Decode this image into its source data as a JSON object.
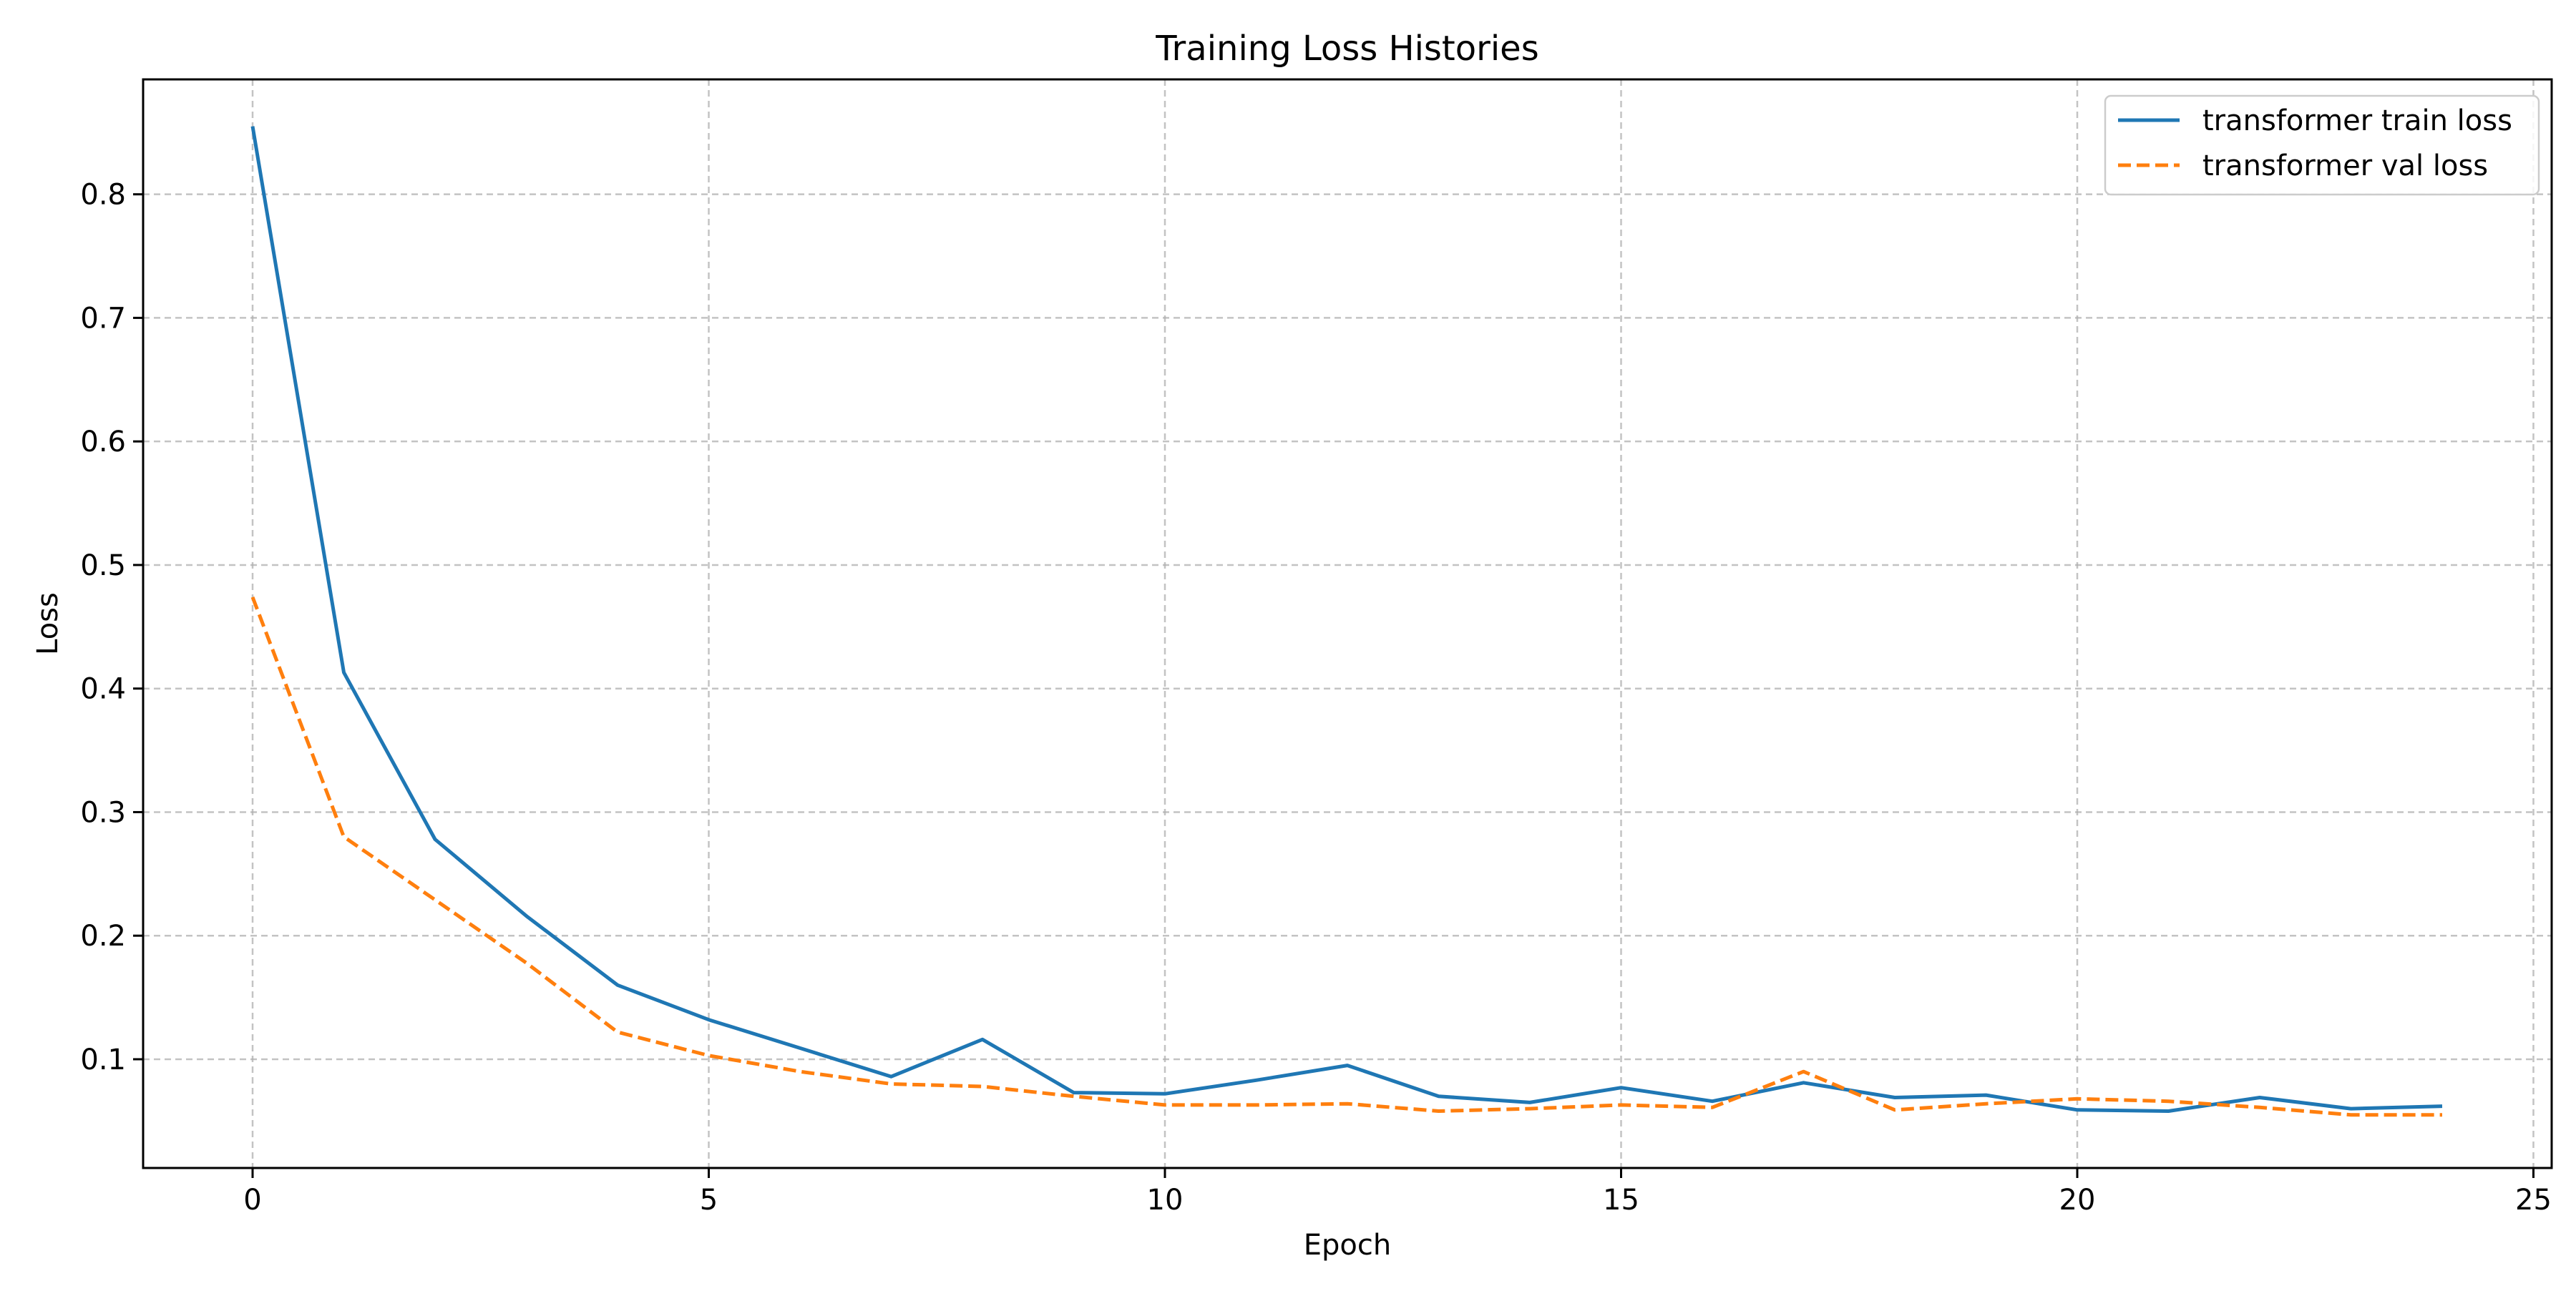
{
  "chart_data": {
    "type": "line",
    "title": "Training Loss Histories",
    "xlabel": "Epoch",
    "ylabel": "Loss",
    "xlim": [
      -1.2,
      25.2
    ],
    "ylim": [
      0.012,
      0.893
    ],
    "x_ticks": [
      0,
      5,
      10,
      15,
      20,
      25
    ],
    "y_ticks": [
      0.1,
      0.2,
      0.3,
      0.4,
      0.5,
      0.6,
      0.7,
      0.8
    ],
    "x_tick_labels": [
      "0",
      "5",
      "10",
      "15",
      "20",
      "25"
    ],
    "y_tick_labels": [
      "0.1",
      "0.2",
      "0.3",
      "0.4",
      "0.5",
      "0.6",
      "0.7",
      "0.8"
    ],
    "grid": true,
    "legend_position": "top-right",
    "x": [
      0,
      1,
      2,
      3,
      4,
      5,
      6,
      7,
      8,
      9,
      10,
      11,
      12,
      13,
      14,
      15,
      16,
      17,
      18,
      19,
      20,
      21,
      22,
      23,
      24
    ],
    "series": [
      {
        "name": "transformer train loss",
        "color": "#1f77b4",
        "style": "solid",
        "values": [
          0.855,
          0.413,
          0.278,
          0.216,
          0.16,
          0.132,
          0.109,
          0.086,
          0.116,
          0.073,
          0.072,
          0.083,
          0.095,
          0.07,
          0.065,
          0.077,
          0.066,
          0.081,
          0.069,
          0.071,
          0.059,
          0.058,
          0.069,
          0.06,
          0.062
        ]
      },
      {
        "name": "transformer val loss",
        "color": "#ff7f0e",
        "style": "dashed",
        "values": [
          0.474,
          0.28,
          0.229,
          0.178,
          0.122,
          0.103,
          0.09,
          0.08,
          0.078,
          0.07,
          0.063,
          0.063,
          0.064,
          0.058,
          0.06,
          0.063,
          0.061,
          0.09,
          0.059,
          0.064,
          0.068,
          0.066,
          0.061,
          0.055,
          0.055
        ]
      }
    ]
  }
}
